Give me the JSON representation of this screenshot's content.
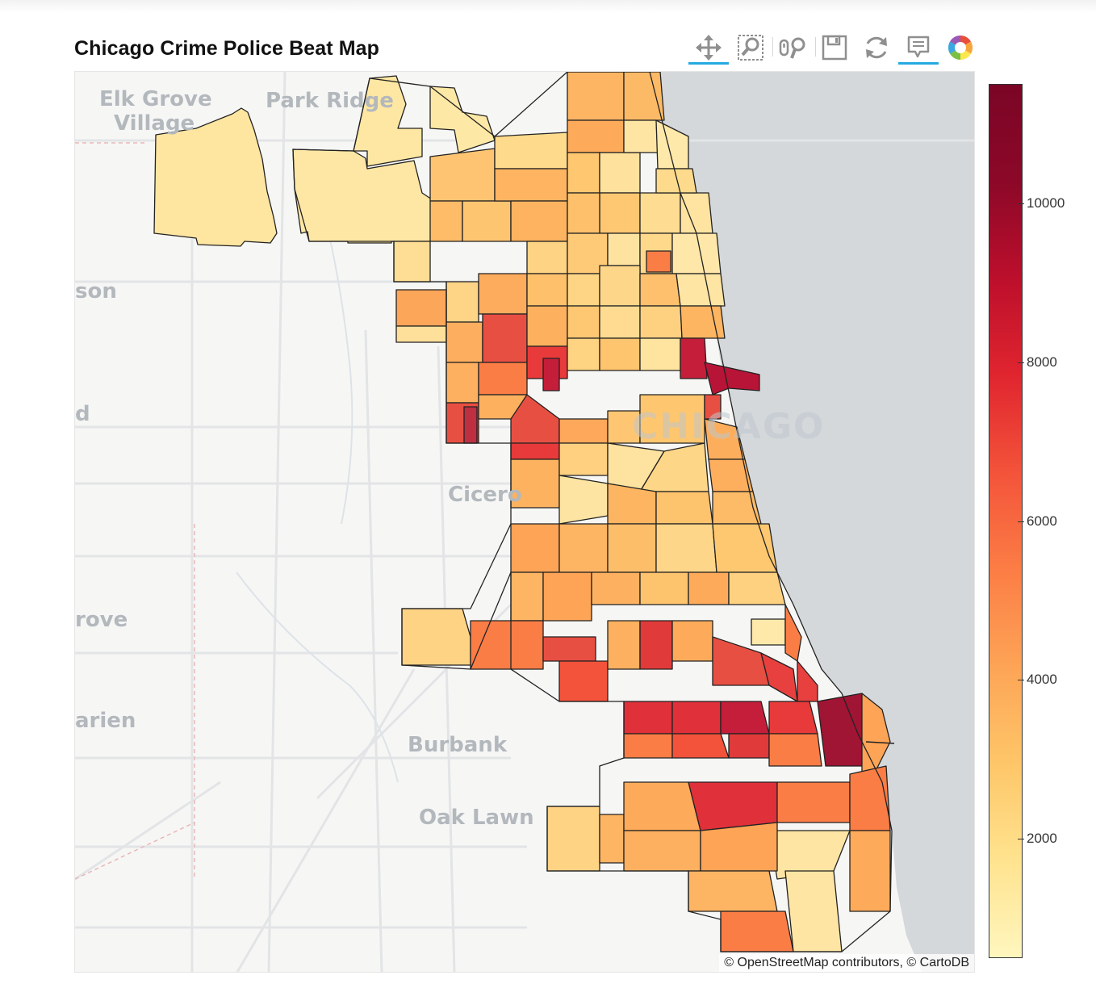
{
  "title": "Chicago Crime Police Beat Map",
  "toolbar": {
    "tools": [
      {
        "name": "pan-tool",
        "icon": "move-arrows-icon",
        "active": true
      },
      {
        "name": "box-zoom-tool",
        "icon": "box-zoom-icon",
        "active": false
      },
      {
        "name": "wheel-zoom-tool",
        "icon": "wheel-zoom-icon",
        "active": false
      },
      {
        "name": "save-tool",
        "icon": "floppy-disk-icon",
        "active": false
      },
      {
        "name": "reset-tool",
        "icon": "reset-arrows-icon",
        "active": false
      },
      {
        "name": "hover-tool",
        "icon": "tooltip-icon",
        "active": true
      },
      {
        "name": "bokeh-logo",
        "icon": "bokeh-logo-icon",
        "active": false
      }
    ]
  },
  "map": {
    "place_labels": [
      "Elk Grove",
      "Village",
      "Park Ridge",
      "son",
      "d",
      "Cicero",
      "rove",
      "arien",
      "Burbank",
      "Oak Lawn"
    ],
    "city_label": "CHICAGO",
    "attribution": "© OpenStreetMap contributors, © CartoDB",
    "lake_color": "#d4d8db",
    "land_color": "#f6f6f5",
    "beat_border_color": "#222222"
  },
  "chart_data": {
    "type": "heatmap",
    "title": "Chicago Crime Police Beat Map",
    "colorbar": {
      "min": 500,
      "max": 11500,
      "ticks": [
        2000,
        4000,
        6000,
        8000,
        10000
      ],
      "tick_labels": [
        "2000",
        "4000",
        "6000",
        "8000",
        "10000"
      ],
      "palette": [
        "#fff6be",
        "#ffe38f",
        "#fec668",
        "#fda456",
        "#fc7d45",
        "#f3533a",
        "#e0252f",
        "#bc0f2c",
        "#8c0828",
        "#7b0526"
      ]
    }
  }
}
